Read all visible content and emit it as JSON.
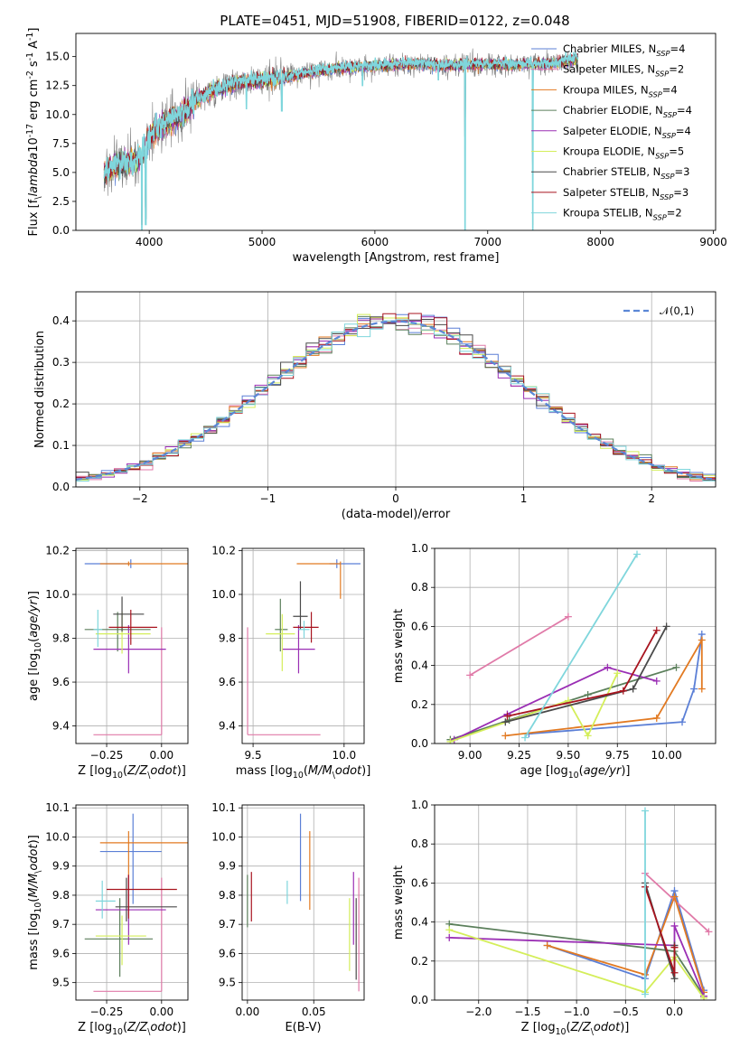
{
  "figure_title": "PLATE=0451, MJD=51908, FIBERID=0122, z=0.048",
  "models": [
    {
      "name": "Chabrier MILES, N$_{SSP}$=4",
      "color": "#5b7fd6"
    },
    {
      "name": "Salpeter MILES, N$_{SSP}$=2",
      "color": "#e07aa8"
    },
    {
      "name": "Kroupa MILES, N$_{SSP}$=4",
      "color": "#e27a22"
    },
    {
      "name": "Chabrier ELODIE, N$_{SSP}$=4",
      "color": "#5b7f5b"
    },
    {
      "name": "Salpeter ELODIE, N$_{SSP}$=4",
      "color": "#9a2eb4"
    },
    {
      "name": "Kroupa ELODIE, N$_{SSP}$=5",
      "color": "#d4ee5a"
    },
    {
      "name": "Chabrier STELIB, N$_{SSP}$=3",
      "color": "#4a4a4a"
    },
    {
      "name": "Salpeter STELIB, N$_{SSP}$=3",
      "color": "#a8141f"
    },
    {
      "name": "Kroupa STELIB, N$_{SSP}$=2",
      "color": "#7fd6dc"
    }
  ],
  "chart_data": [
    {
      "id": "spectrum",
      "type": "line",
      "title": "PLATE=0451, MJD=51908, FIBERID=0122, z=0.048",
      "xlabel": "wavelength [Angstrom, rest frame]",
      "ylabel": "Flux [f$_\\lambda$10$^{-17}$ erg cm$^{-2}$ s$^{-1}$ A$^{-1}$]",
      "xlim": [
        3350,
        9020
      ],
      "ylim": [
        0,
        17
      ],
      "xticks": [
        4000,
        5000,
        6000,
        7000,
        8000,
        9000
      ],
      "yticks": [
        0.0,
        2.5,
        5.0,
        7.5,
        10.0,
        12.5,
        15.0
      ],
      "legend": "right",
      "continuum": [
        [
          3600,
          5.0
        ],
        [
          3650,
          5.2
        ],
        [
          3700,
          5.6
        ],
        [
          3800,
          5.8
        ],
        [
          3900,
          6.0
        ],
        [
          4000,
          8.0
        ],
        [
          4100,
          9.0
        ],
        [
          4200,
          9.6
        ],
        [
          4300,
          10.0
        ],
        [
          4400,
          11.2
        ],
        [
          4600,
          12.2
        ],
        [
          4800,
          12.8
        ],
        [
          5000,
          13.0
        ],
        [
          5200,
          13.2
        ],
        [
          5400,
          13.6
        ],
        [
          5600,
          13.9
        ],
        [
          5800,
          14.1
        ],
        [
          6000,
          14.2
        ],
        [
          6200,
          14.3
        ],
        [
          6400,
          14.4
        ],
        [
          6600,
          14.2
        ],
        [
          6800,
          14.3
        ],
        [
          7000,
          14.3
        ],
        [
          7200,
          14.3
        ],
        [
          7400,
          14.3
        ],
        [
          7600,
          14.4
        ],
        [
          7800,
          14.8
        ]
      ],
      "data_range": [
        3600,
        7800
      ],
      "absorption_lines": [
        [
          3934,
          0.0
        ],
        [
          3969,
          0.5
        ],
        [
          4102,
          8.0
        ],
        [
          4300,
          9.0
        ],
        [
          4861,
          10.5
        ],
        [
          5175,
          10.3
        ],
        [
          5890,
          12.5
        ],
        [
          6563,
          13.0
        ],
        [
          6800,
          0.0
        ],
        [
          7400,
          0.0
        ]
      ]
    },
    {
      "id": "residuals",
      "type": "step",
      "xlabel": "(data-model)/error",
      "ylabel": "Normed distribution",
      "xlim": [
        -2.5,
        2.5
      ],
      "ylim": [
        0,
        0.47
      ],
      "xticks": [
        -2,
        -1,
        0,
        1,
        2
      ],
      "yticks": [
        0.0,
        0.1,
        0.2,
        0.3,
        0.4
      ],
      "grid": true,
      "legend": "top-right",
      "reference": {
        "name": "$\\mathcal{N}(0,1)$",
        "color": "#5b87d6",
        "mu": 0,
        "sigma": 1
      },
      "bin_width": 0.1
    },
    {
      "id": "z-age",
      "type": "errorbar",
      "xlabel": "Z [log$_{10}$($Z/Z_\\odot$)]",
      "ylabel": "age  [log$_{10}$($age/yr$)]",
      "xlim": [
        -0.39,
        0.12
      ],
      "ylim": [
        9.32,
        10.21
      ],
      "xticks": [
        -0.25,
        0.0
      ],
      "yticks": [
        9.4,
        9.6,
        9.8,
        10.0,
        10.2
      ],
      "grid": true,
      "points": [
        {
          "model": 0,
          "x": -0.14,
          "xlo": -0.35,
          "xhi": -0.14,
          "y": 10.14,
          "ylo": 10.12,
          "yhi": 10.16
        },
        {
          "model": 1,
          "x": 0.0,
          "xlo": -0.31,
          "xhi": 0.0,
          "y": 9.36,
          "ylo": 9.36,
          "yhi": 9.85
        },
        {
          "model": 2,
          "x": -0.15,
          "xlo": -0.28,
          "xhi": 0.12,
          "y": 10.14,
          "ylo": 10.13,
          "yhi": 10.15
        },
        {
          "model": 3,
          "x": -0.2,
          "xlo": -0.35,
          "xhi": -0.05,
          "y": 9.84,
          "ylo": 9.74,
          "yhi": 9.92
        },
        {
          "model": 4,
          "x": -0.15,
          "xlo": -0.31,
          "xhi": 0.02,
          "y": 9.75,
          "ylo": 9.64,
          "yhi": 9.86
        },
        {
          "model": 5,
          "x": -0.18,
          "xlo": -0.3,
          "xhi": -0.05,
          "y": 9.82,
          "ylo": 9.73,
          "yhi": 9.92
        },
        {
          "model": 6,
          "x": -0.18,
          "xlo": -0.22,
          "xhi": -0.08,
          "y": 9.91,
          "ylo": 9.83,
          "yhi": 9.99
        },
        {
          "model": 7,
          "x": -0.14,
          "xlo": -0.24,
          "xhi": -0.02,
          "y": 9.85,
          "ylo": 9.77,
          "yhi": 9.93
        },
        {
          "model": 8,
          "x": -0.29,
          "xlo": -0.31,
          "xhi": -0.27,
          "y": 9.84,
          "ylo": 9.76,
          "yhi": 9.93
        }
      ]
    },
    {
      "id": "mass-age",
      "type": "errorbar",
      "xlabel": "mass [log$_{10}$($M/M_\\odot$)]",
      "ylabel": "",
      "xlim": [
        9.44,
        10.11
      ],
      "ylim": [
        9.32,
        10.21
      ],
      "xticks": [
        9.5,
        10.0
      ],
      "yticks": [
        9.4,
        9.6,
        9.8,
        10.0,
        10.2
      ],
      "grid": true,
      "points": [
        {
          "model": 0,
          "x": 9.96,
          "xlo": 9.92,
          "xhi": 10.09,
          "y": 10.14,
          "ylo": 10.12,
          "yhi": 10.16
        },
        {
          "model": 1,
          "x": 9.47,
          "xlo": 9.47,
          "xhi": 9.87,
          "y": 9.36,
          "ylo": 9.36,
          "yhi": 9.85
        },
        {
          "model": 2,
          "x": 9.98,
          "xlo": 9.74,
          "xhi": 9.98,
          "y": 10.14,
          "ylo": 9.98,
          "yhi": 10.15
        },
        {
          "model": 3,
          "x": 9.65,
          "xlo": 9.62,
          "xhi": 9.69,
          "y": 9.84,
          "ylo": 9.74,
          "yhi": 9.98
        },
        {
          "model": 4,
          "x": 9.75,
          "xlo": 9.66,
          "xhi": 9.84,
          "y": 9.75,
          "ylo": 9.64,
          "yhi": 9.86
        },
        {
          "model": 5,
          "x": 9.66,
          "xlo": 9.57,
          "xhi": 9.73,
          "y": 9.82,
          "ylo": 9.65,
          "yhi": 9.91
        },
        {
          "model": 6,
          "x": 9.76,
          "xlo": 9.72,
          "xhi": 9.8,
          "y": 9.9,
          "ylo": 9.84,
          "yhi": 10.06
        },
        {
          "model": 7,
          "x": 9.82,
          "xlo": 9.72,
          "xhi": 9.86,
          "y": 9.85,
          "ylo": 9.78,
          "yhi": 9.92
        },
        {
          "model": 8,
          "x": 9.78,
          "xlo": 9.75,
          "xhi": 9.81,
          "y": 9.84,
          "ylo": 9.8,
          "yhi": 9.88
        }
      ]
    },
    {
      "id": "age-weight",
      "type": "line",
      "xlabel": "age  [log$_{10}$($age/yr$)]",
      "ylabel": "mass weight",
      "xlim": [
        8.82,
        10.25
      ],
      "ylim": [
        0,
        1.0
      ],
      "xticks": [
        9.0,
        9.25,
        9.5,
        9.75,
        10.0
      ],
      "yticks": [
        0.0,
        0.2,
        0.4,
        0.6,
        0.8,
        1.0
      ],
      "grid": true,
      "series": [
        {
          "model": 0,
          "points": [
            [
              9.3,
              0.05
            ],
            [
              10.08,
              0.11
            ],
            [
              10.14,
              0.28
            ],
            [
              10.18,
              0.56
            ]
          ]
        },
        {
          "model": 1,
          "points": [
            [
              9.0,
              0.35
            ],
            [
              9.5,
              0.65
            ]
          ]
        },
        {
          "model": 2,
          "points": [
            [
              9.18,
              0.04
            ],
            [
              9.95,
              0.13
            ],
            [
              10.18,
              0.53
            ],
            [
              10.18,
              0.28
            ]
          ]
        },
        {
          "model": 3,
          "points": [
            [
              8.9,
              0.02
            ],
            [
              9.2,
              0.12
            ],
            [
              9.6,
              0.25
            ],
            [
              10.05,
              0.39
            ]
          ]
        },
        {
          "model": 4,
          "points": [
            [
              8.92,
              0.02
            ],
            [
              9.19,
              0.15
            ],
            [
              9.7,
              0.39
            ],
            [
              9.95,
              0.32
            ]
          ]
        },
        {
          "model": 5,
          "points": [
            [
              8.9,
              0.01
            ],
            [
              9.5,
              0.22
            ],
            [
              9.6,
              0.04
            ],
            [
              9.75,
              0.36
            ]
          ]
        },
        {
          "model": 6,
          "points": [
            [
              9.18,
              0.11
            ],
            [
              9.83,
              0.28
            ],
            [
              10.0,
              0.6
            ]
          ]
        },
        {
          "model": 7,
          "points": [
            [
              9.19,
              0.14
            ],
            [
              9.78,
              0.27
            ],
            [
              9.95,
              0.58
            ]
          ]
        },
        {
          "model": 8,
          "points": [
            [
              9.28,
              0.03
            ],
            [
              9.85,
              0.97
            ]
          ]
        }
      ]
    },
    {
      "id": "z-mass",
      "type": "errorbar",
      "xlabel": "Z [log$_{10}$($Z/Z_\\odot$)]",
      "ylabel": "mass [log$_{10}$($M/M_\\odot$)]",
      "xlim": [
        -0.39,
        0.12
      ],
      "ylim": [
        9.44,
        10.11
      ],
      "xticks": [
        -0.25,
        0.0
      ],
      "yticks": [
        9.5,
        9.6,
        9.7,
        9.8,
        9.9,
        10.0,
        10.1
      ],
      "grid": true,
      "points": [
        {
          "model": 0,
          "x": -0.13,
          "xlo": -0.28,
          "xhi": 0.0,
          "y": 9.95,
          "ylo": 9.77,
          "yhi": 10.08
        },
        {
          "model": 1,
          "x": 0.0,
          "xlo": -0.31,
          "xhi": 0.0,
          "y": 9.47,
          "ylo": 9.47,
          "yhi": 9.86
        },
        {
          "model": 2,
          "x": -0.15,
          "xlo": -0.28,
          "xhi": 0.12,
          "y": 9.98,
          "ylo": 9.73,
          "yhi": 10.02
        },
        {
          "model": 3,
          "x": -0.19,
          "xlo": -0.35,
          "xhi": -0.04,
          "y": 9.65,
          "ylo": 9.52,
          "yhi": 9.79
        },
        {
          "model": 4,
          "x": -0.15,
          "xlo": -0.3,
          "xhi": 0.02,
          "y": 9.75,
          "ylo": 9.63,
          "yhi": 9.87
        },
        {
          "model": 5,
          "x": -0.18,
          "xlo": -0.3,
          "xhi": -0.07,
          "y": 9.66,
          "ylo": 9.56,
          "yhi": 9.73
        },
        {
          "model": 6,
          "x": -0.16,
          "xlo": -0.21,
          "xhi": 0.07,
          "y": 9.76,
          "ylo": 9.71,
          "yhi": 9.86
        },
        {
          "model": 7,
          "x": -0.15,
          "xlo": -0.25,
          "xhi": 0.07,
          "y": 9.82,
          "ylo": 9.72,
          "yhi": 9.87
        },
        {
          "model": 8,
          "x": -0.27,
          "xlo": -0.3,
          "xhi": -0.21,
          "y": 9.78,
          "ylo": 9.72,
          "yhi": 9.85
        }
      ]
    },
    {
      "id": "ebv-mass",
      "type": "errorbar",
      "xlabel": "E(B-V)",
      "ylabel": "",
      "xlim": [
        -0.004,
        0.088
      ],
      "ylim": [
        9.44,
        10.11
      ],
      "xticks": [
        0.0,
        0.05
      ],
      "yticks": [
        9.5,
        9.6,
        9.7,
        9.8,
        9.9,
        10.0,
        10.1
      ],
      "grid": true,
      "points": [
        {
          "model": 0,
          "x": 0.04,
          "xlo": 0.04,
          "xhi": 0.04,
          "y": 9.95,
          "ylo": 9.78,
          "yhi": 10.08
        },
        {
          "model": 1,
          "x": 0.084,
          "xlo": 0.084,
          "xhi": 0.084,
          "y": 9.47,
          "ylo": 9.47,
          "yhi": 9.86
        },
        {
          "model": 2,
          "x": 0.047,
          "xlo": 0.047,
          "xhi": 0.047,
          "y": 9.98,
          "ylo": 9.75,
          "yhi": 10.02
        },
        {
          "model": 3,
          "x": 0.0,
          "xlo": 0.0,
          "xhi": 0.0,
          "y": 9.65,
          "ylo": 9.69,
          "yhi": 9.87
        },
        {
          "model": 4,
          "x": 0.08,
          "xlo": 0.08,
          "xhi": 0.08,
          "y": 9.75,
          "ylo": 9.63,
          "yhi": 9.88
        },
        {
          "model": 5,
          "x": 0.077,
          "xlo": 0.077,
          "xhi": 0.077,
          "y": 9.66,
          "ylo": 9.54,
          "yhi": 9.79
        },
        {
          "model": 6,
          "x": 0.082,
          "xlo": 0.082,
          "xhi": 0.082,
          "y": 9.76,
          "ylo": 9.51,
          "yhi": 9.79
        },
        {
          "model": 7,
          "x": 0.003,
          "xlo": 0.003,
          "xhi": 0.003,
          "y": 9.82,
          "ylo": 9.71,
          "yhi": 9.88
        },
        {
          "model": 8,
          "x": 0.03,
          "xlo": 0.03,
          "xhi": 0.03,
          "y": 9.78,
          "ylo": 9.77,
          "yhi": 9.85
        }
      ]
    },
    {
      "id": "z-weight",
      "type": "line",
      "xlabel": "Z [log$_{10}$($Z/Z_\\odot$)]",
      "ylabel": "mass weight",
      "xlim": [
        -2.45,
        0.42
      ],
      "ylim": [
        0,
        1.0
      ],
      "xticks": [
        -2.0,
        -1.5,
        -1.0,
        -0.5,
        0.0
      ],
      "yticks": [
        0.0,
        0.2,
        0.4,
        0.6,
        0.8,
        1.0
      ],
      "grid": true,
      "series": [
        {
          "model": 0,
          "points": [
            [
              -1.3,
              0.28
            ],
            [
              -0.3,
              0.11
            ],
            [
              0.0,
              0.56
            ],
            [
              0.3,
              0.05
            ]
          ]
        },
        {
          "model": 1,
          "points": [
            [
              -0.3,
              0.65
            ],
            [
              0.35,
              0.35
            ]
          ]
        },
        {
          "model": 2,
          "points": [
            [
              -1.3,
              0.28
            ],
            [
              -0.3,
              0.13
            ],
            [
              0.0,
              0.53
            ],
            [
              0.3,
              0.04
            ]
          ]
        },
        {
          "model": 3,
          "points": [
            [
              -2.3,
              0.39
            ],
            [
              0.0,
              0.25
            ],
            [
              0.3,
              0.02
            ]
          ]
        },
        {
          "model": 4,
          "points": [
            [
              -2.3,
              0.32
            ],
            [
              0.0,
              0.28
            ],
            [
              0.0,
              0.38
            ],
            [
              0.3,
              0.02
            ]
          ]
        },
        {
          "model": 5,
          "points": [
            [
              -2.3,
              0.36
            ],
            [
              -0.3,
              0.04
            ],
            [
              0.0,
              0.22
            ],
            [
              0.3,
              0.01
            ]
          ]
        },
        {
          "model": 6,
          "points": [
            [
              -0.3,
              0.6
            ],
            [
              0.0,
              0.11
            ],
            [
              0.0,
              0.28
            ]
          ]
        },
        {
          "model": 7,
          "points": [
            [
              -0.3,
              0.58
            ],
            [
              0.0,
              0.14
            ],
            [
              0.0,
              0.27
            ]
          ]
        },
        {
          "model": 8,
          "points": [
            [
              -0.3,
              0.97
            ],
            [
              -0.3,
              0.03
            ]
          ]
        }
      ]
    }
  ]
}
